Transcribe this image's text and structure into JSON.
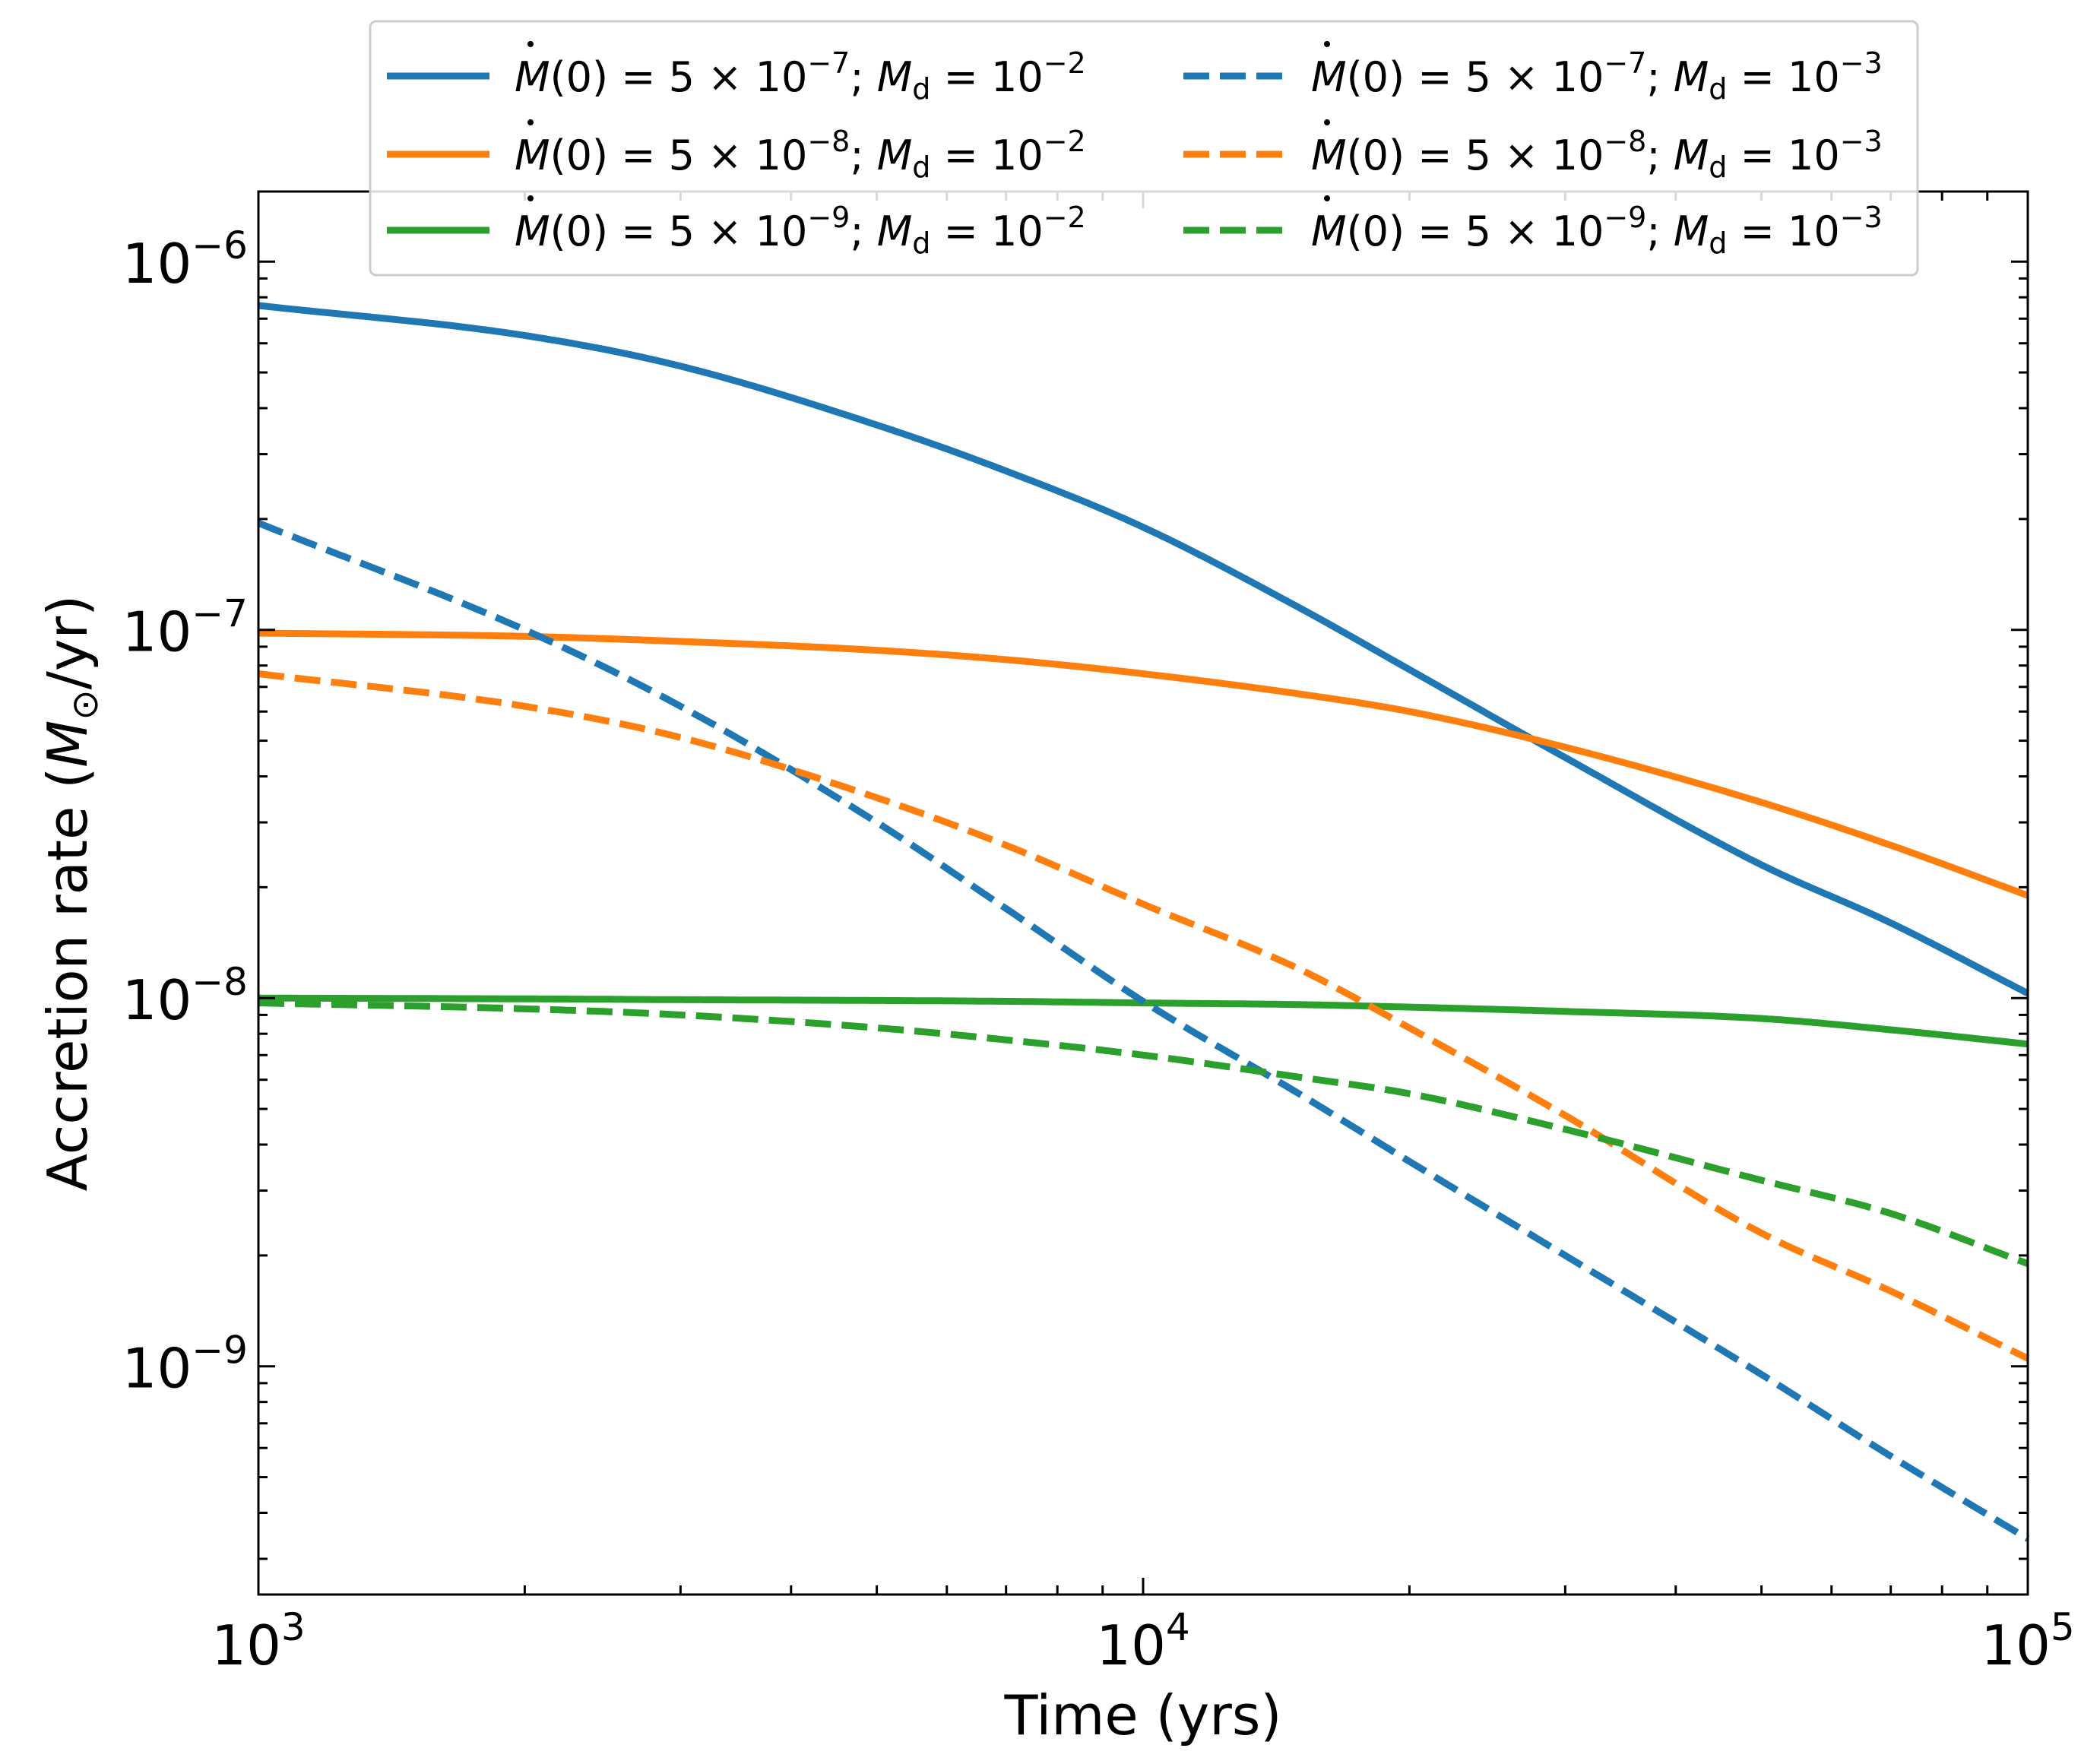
{
  "chart_data": {
    "type": "line",
    "xscale": "log",
    "yscale": "log",
    "xlabel": "Time (yrs)",
    "ylabel_prefix": "Accretion rate (",
    "ylabel_sym": "M",
    "ylabel_sub": "⊙",
    "ylabel_suffix": "/yr)",
    "xlim": [
      1000,
      100000
    ],
    "ylim": [
      2.4e-10,
      1.55e-06
    ],
    "x_ticks": [
      {
        "value": 1000,
        "base": "10",
        "exp": "3"
      },
      {
        "value": 10000,
        "base": "10",
        "exp": "4"
      },
      {
        "value": 100000,
        "base": "10",
        "exp": "5"
      }
    ],
    "y_ticks": [
      {
        "value": 1e-06,
        "base": "10",
        "exp": "−6"
      },
      {
        "value": 1e-07,
        "base": "10",
        "exp": "−7"
      },
      {
        "value": 1e-08,
        "base": "10",
        "exp": "−8"
      },
      {
        "value": 1e-09,
        "base": "10",
        "exp": "−9"
      }
    ],
    "x": [
      1000,
      2000,
      3000,
      5000,
      7000,
      10000,
      15000,
      20000,
      30000,
      50000,
      70000,
      100000
    ],
    "series": [
      {
        "name": "solid-mdot5e-7",
        "color": "#1f77b4",
        "dash": "solid",
        "legend": {
          "mdot_mant": "5",
          "mdot_exp": "−7",
          "md_exp": "−2"
        },
        "values": [
          7.6e-07,
          6.3e-07,
          5.2e-07,
          3.6e-07,
          2.7e-07,
          1.9e-07,
          1.15e-07,
          7.8e-08,
          4.5e-08,
          2.3e-08,
          1.6e-08,
          1.03e-08
        ]
      },
      {
        "name": "solid-mdot5e-8",
        "color": "#ff7f0e",
        "dash": "solid",
        "legend": {
          "mdot_mant": "5",
          "mdot_exp": "−8",
          "md_exp": "−2"
        },
        "values": [
          9.8e-08,
          9.6e-08,
          9.3e-08,
          8.8e-08,
          8.3e-08,
          7.6e-08,
          6.7e-08,
          6e-08,
          4.8e-08,
          3.4e-08,
          2.6e-08,
          1.9e-08
        ]
      },
      {
        "name": "solid-mdot5e-9",
        "color": "#2ca02c",
        "dash": "solid",
        "legend": {
          "mdot_mant": "5",
          "mdot_exp": "−9",
          "md_exp": "−2"
        },
        "values": [
          1e-08,
          9.95e-09,
          9.9e-09,
          9.85e-09,
          9.8e-09,
          9.7e-09,
          9.6e-09,
          9.45e-09,
          9.2e-09,
          8.8e-09,
          8.2e-09,
          7.5e-09
        ]
      },
      {
        "name": "dashed-mdot5e-7",
        "color": "#1f77b4",
        "dash": "dashed",
        "legend": {
          "mdot_mant": "5",
          "mdot_exp": "−7",
          "md_exp": "−3"
        },
        "values": [
          1.95e-07,
          1e-07,
          6.2e-08,
          3e-08,
          1.75e-08,
          9.8e-09,
          5.5e-09,
          3.6e-09,
          2e-09,
          9.5e-10,
          5.7e-10,
          3.4e-10
        ]
      },
      {
        "name": "dashed-mdot5e-8",
        "color": "#ff7f0e",
        "dash": "dashed",
        "legend": {
          "mdot_mant": "5",
          "mdot_exp": "−8",
          "md_exp": "−3"
        },
        "values": [
          7.6e-08,
          6.2e-08,
          5.1e-08,
          3.5e-08,
          2.6e-08,
          1.8e-08,
          1.2e-08,
          8.3e-09,
          4.8e-09,
          2.3e-09,
          1.6e-09,
          1.05e-09
        ]
      },
      {
        "name": "dashed-mdot5e-9",
        "color": "#2ca02c",
        "dash": "dashed",
        "legend": {
          "mdot_mant": "5",
          "mdot_exp": "−9",
          "md_exp": "−3"
        },
        "values": [
          9.7e-09,
          9.35e-09,
          9e-09,
          8.3e-09,
          7.7e-09,
          7e-09,
          6.1e-09,
          5.5e-09,
          4.4e-09,
          3.2e-09,
          2.6e-09,
          1.9e-09
        ]
      }
    ]
  }
}
